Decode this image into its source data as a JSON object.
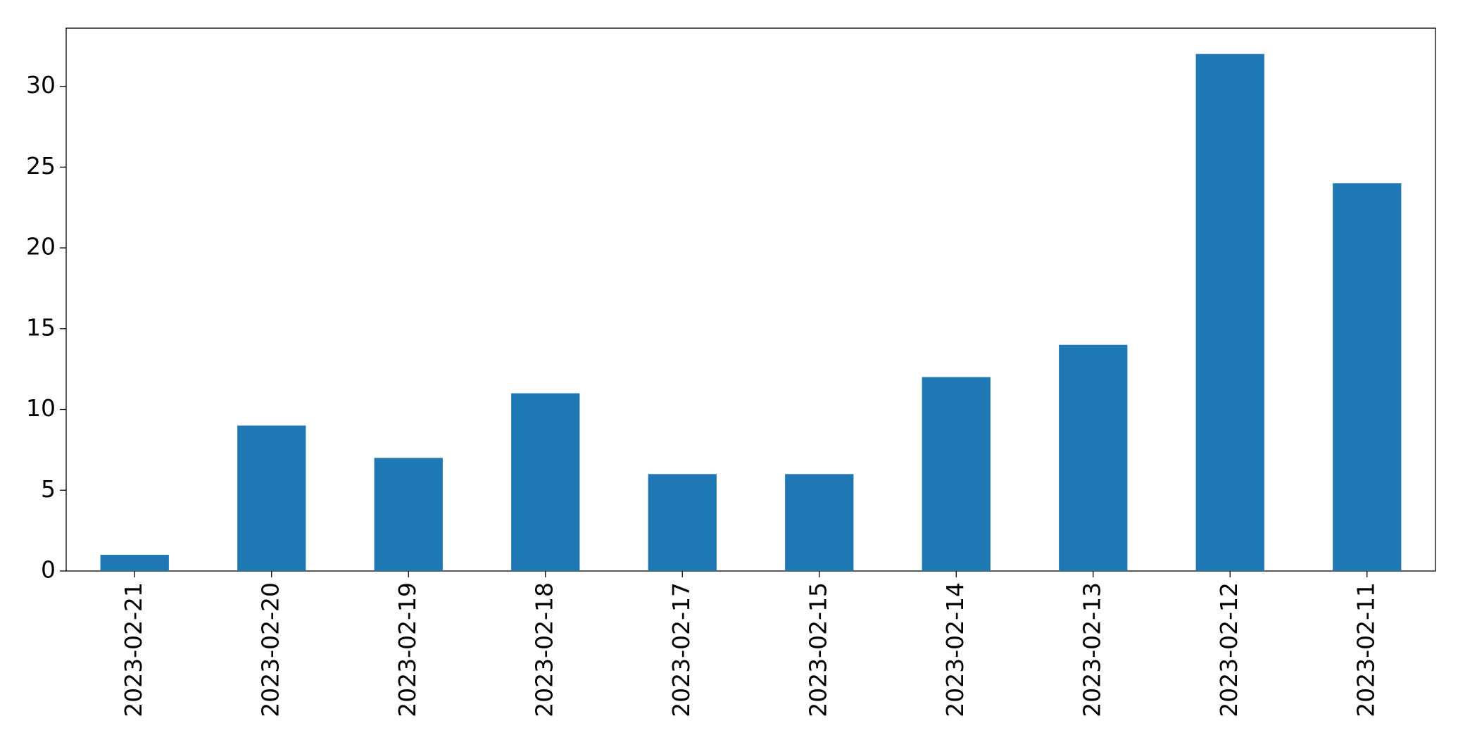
{
  "chart_data": {
    "type": "bar",
    "categories": [
      "2023-02-21",
      "2023-02-20",
      "2023-02-19",
      "2023-02-18",
      "2023-02-17",
      "2023-02-15",
      "2023-02-14",
      "2023-02-13",
      "2023-02-12",
      "2023-02-11"
    ],
    "values": [
      1,
      9,
      7,
      11,
      6,
      6,
      12,
      14,
      32,
      24
    ],
    "color": "#1f77b4",
    "ylim": [
      0,
      33.6
    ],
    "yticks": [
      0,
      5,
      10,
      15,
      20,
      25,
      30
    ],
    "grid": false
  }
}
